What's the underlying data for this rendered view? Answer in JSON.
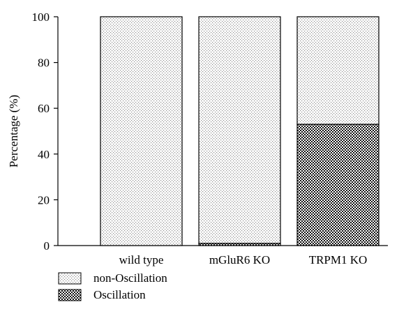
{
  "chart_data": {
    "type": "bar",
    "stacked": true,
    "categories": [
      "wild type",
      "mGluR6 KO",
      "TRPM1 KO"
    ],
    "series": [
      {
        "name": "Oscillation",
        "values": [
          0,
          1,
          53
        ]
      },
      {
        "name": "non-Oscillation",
        "values": [
          100,
          99,
          47
        ]
      }
    ],
    "title": "",
    "xlabel": "",
    "ylabel": "Percentage (%)",
    "ylim": [
      0,
      100
    ],
    "yticks": [
      "0",
      "20",
      "40",
      "60",
      "80",
      "100"
    ],
    "grid": false,
    "legend_position": "bottom-left",
    "legend": [
      {
        "label": "non-Oscillation",
        "pattern": "light-dots"
      },
      {
        "label": "Oscillation",
        "pattern": "dark-checker"
      }
    ]
  }
}
